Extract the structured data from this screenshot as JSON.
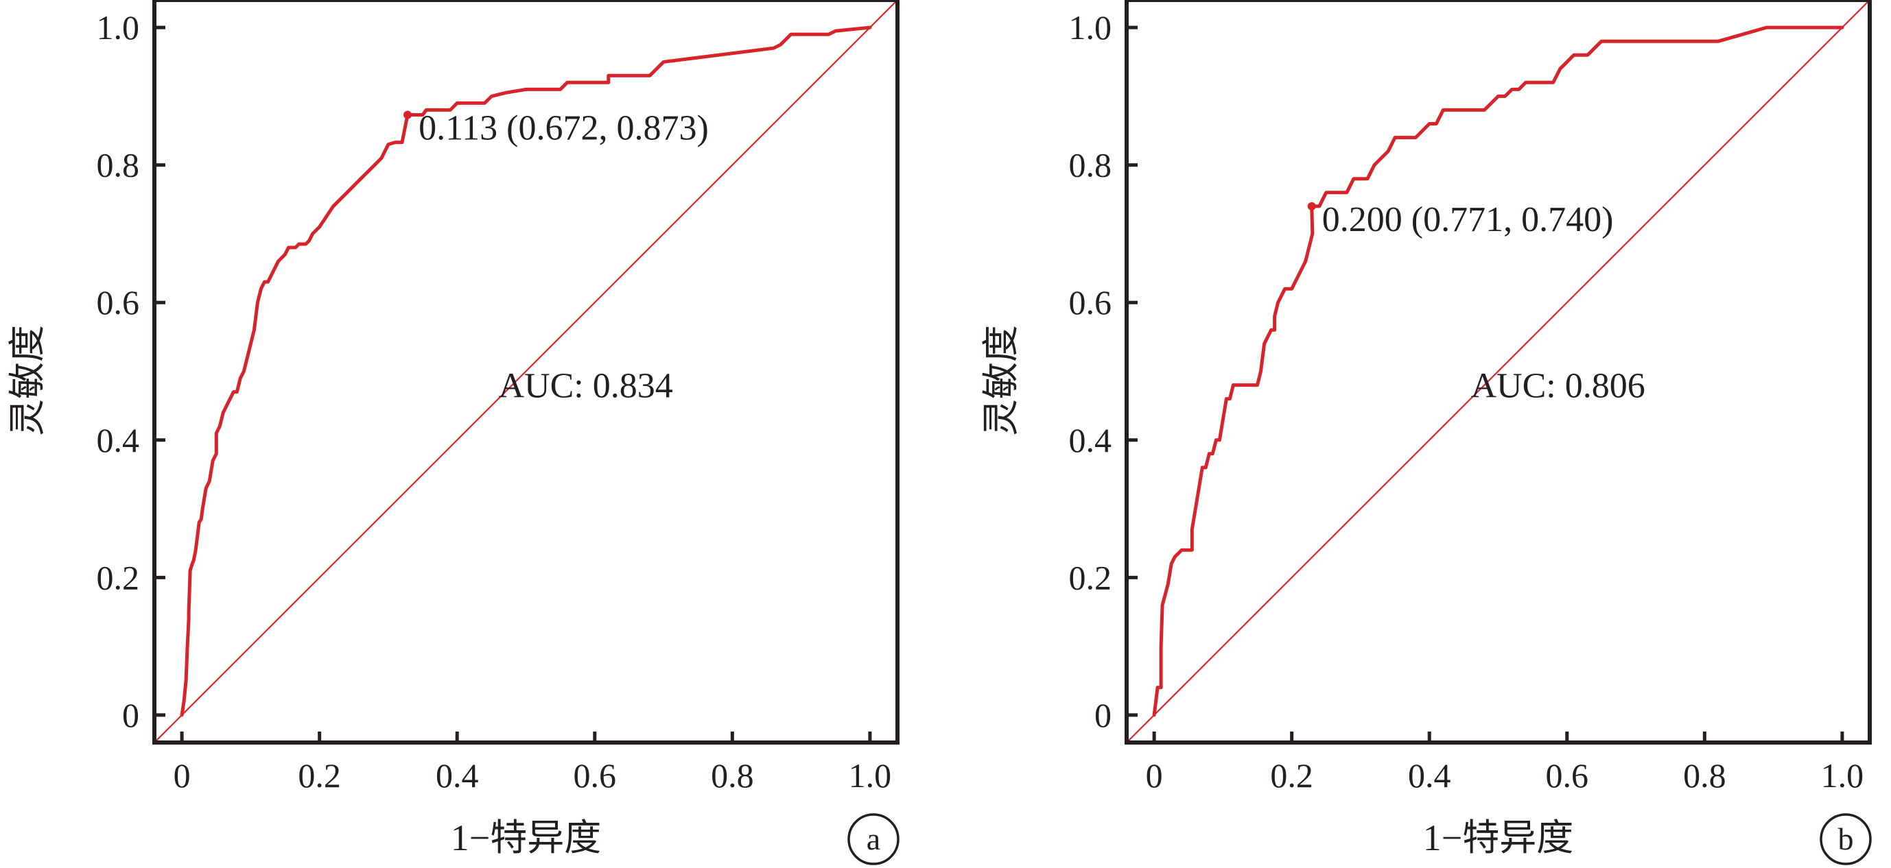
{
  "chart_data": [
    {
      "type": "line",
      "panel_label": "a",
      "xlabel": "1−特异度",
      "ylabel": "灵敏度",
      "xlim": [
        -0.04,
        1.04
      ],
      "ylim": [
        -0.04,
        1.04
      ],
      "xticks": [
        0,
        0.2,
        0.4,
        0.6,
        0.8,
        1.0
      ],
      "xtick_labels": [
        "0",
        "0.2",
        "0.4",
        "0.6",
        "0.8",
        "1.0"
      ],
      "yticks": [
        0,
        0.2,
        0.4,
        0.6,
        0.8,
        1.0
      ],
      "ytick_labels": [
        "0",
        "0.2",
        "0.4",
        "0.6",
        "0.8",
        "1.0"
      ],
      "grid": false,
      "auc_text": "AUC: 0.834",
      "cutoff_text": "0.113 (0.672, 0.873)",
      "cutoff_point": {
        "x": 0.328,
        "y": 0.873
      },
      "diagonal": [
        [
          -0.04,
          -0.04
        ],
        [
          1.04,
          1.04
        ]
      ],
      "roc": {
        "x": [
          0,
          0.003,
          0.006,
          0.008,
          0.01,
          0.01,
          0.012,
          0.015,
          0.017,
          0.02,
          0.025,
          0.028,
          0.03,
          0.035,
          0.04,
          0.045,
          0.05,
          0.05,
          0.055,
          0.06,
          0.065,
          0.07,
          0.075,
          0.08,
          0.085,
          0.09,
          0.1,
          0.105,
          0.11,
          0.115,
          0.12,
          0.125,
          0.13,
          0.14,
          0.15,
          0.155,
          0.165,
          0.17,
          0.18,
          0.185,
          0.19,
          0.2,
          0.22,
          0.24,
          0.26,
          0.28,
          0.29,
          0.3,
          0.31,
          0.32,
          0.328,
          0.33,
          0.34,
          0.35,
          0.355,
          0.37,
          0.39,
          0.4,
          0.44,
          0.45,
          0.47,
          0.5,
          0.55,
          0.56,
          0.61,
          0.62,
          0.62,
          0.68,
          0.69,
          0.7,
          0.86,
          0.87,
          0.88,
          0.885,
          0.9,
          0.94,
          0.95,
          1.0
        ],
        "y": [
          0,
          0.02,
          0.05,
          0.1,
          0.14,
          0.15,
          0.21,
          0.22,
          0.225,
          0.24,
          0.28,
          0.285,
          0.3,
          0.33,
          0.34,
          0.37,
          0.38,
          0.41,
          0.42,
          0.44,
          0.45,
          0.46,
          0.47,
          0.47,
          0.49,
          0.5,
          0.54,
          0.56,
          0.6,
          0.62,
          0.63,
          0.63,
          0.64,
          0.66,
          0.67,
          0.68,
          0.68,
          0.685,
          0.685,
          0.69,
          0.7,
          0.71,
          0.74,
          0.76,
          0.78,
          0.8,
          0.81,
          0.83,
          0.833,
          0.833,
          0.873,
          0.873,
          0.873,
          0.873,
          0.88,
          0.88,
          0.88,
          0.89,
          0.89,
          0.9,
          0.905,
          0.91,
          0.91,
          0.92,
          0.92,
          0.92,
          0.93,
          0.93,
          0.94,
          0.95,
          0.97,
          0.975,
          0.985,
          0.99,
          0.99,
          0.99,
          0.995,
          1.0
        ]
      }
    },
    {
      "type": "line",
      "panel_label": "b",
      "xlabel": "1−特异度",
      "ylabel": "灵敏度",
      "xlim": [
        -0.04,
        1.04
      ],
      "ylim": [
        -0.04,
        1.04
      ],
      "xticks": [
        0,
        0.2,
        0.4,
        0.6,
        0.8,
        1.0
      ],
      "xtick_labels": [
        "0",
        "0.2",
        "0.4",
        "0.6",
        "0.8",
        "1.0"
      ],
      "yticks": [
        0,
        0.2,
        0.4,
        0.6,
        0.8,
        1.0
      ],
      "ytick_labels": [
        "0",
        "0.2",
        "0.4",
        "0.6",
        "0.8",
        "1.0"
      ],
      "grid": false,
      "auc_text": "AUC: 0.806",
      "cutoff_text": "0.200 (0.771, 0.740)",
      "cutoff_point": {
        "x": 0.229,
        "y": 0.74
      },
      "diagonal": [
        [
          -0.04,
          -0.04
        ],
        [
          1.04,
          1.04
        ]
      ],
      "roc": {
        "x": [
          0,
          0.005,
          0.01,
          0.01,
          0.012,
          0.02,
          0.025,
          0.03,
          0.04,
          0.05,
          0.055,
          0.055,
          0.06,
          0.065,
          0.07,
          0.075,
          0.08,
          0.085,
          0.09,
          0.095,
          0.1,
          0.105,
          0.11,
          0.115,
          0.12,
          0.13,
          0.14,
          0.15,
          0.155,
          0.16,
          0.165,
          0.17,
          0.175,
          0.175,
          0.18,
          0.19,
          0.2,
          0.205,
          0.21,
          0.215,
          0.22,
          0.23,
          0.229,
          0.24,
          0.25,
          0.28,
          0.29,
          0.3,
          0.31,
          0.32,
          0.33,
          0.34,
          0.35,
          0.36,
          0.37,
          0.38,
          0.4,
          0.41,
          0.42,
          0.43,
          0.44,
          0.45,
          0.48,
          0.5,
          0.51,
          0.52,
          0.53,
          0.54,
          0.58,
          0.59,
          0.6,
          0.61,
          0.62,
          0.63,
          0.65,
          0.82,
          0.89,
          1.0
        ],
        "y": [
          0,
          0.04,
          0.04,
          0.1,
          0.16,
          0.19,
          0.22,
          0.23,
          0.24,
          0.24,
          0.24,
          0.27,
          0.3,
          0.33,
          0.36,
          0.36,
          0.38,
          0.38,
          0.4,
          0.4,
          0.43,
          0.46,
          0.46,
          0.48,
          0.48,
          0.48,
          0.48,
          0.48,
          0.5,
          0.54,
          0.55,
          0.56,
          0.56,
          0.58,
          0.6,
          0.62,
          0.62,
          0.63,
          0.64,
          0.65,
          0.66,
          0.7,
          0.74,
          0.74,
          0.76,
          0.76,
          0.78,
          0.78,
          0.78,
          0.8,
          0.81,
          0.82,
          0.84,
          0.84,
          0.84,
          0.84,
          0.86,
          0.86,
          0.88,
          0.88,
          0.88,
          0.88,
          0.88,
          0.9,
          0.9,
          0.91,
          0.91,
          0.92,
          0.92,
          0.94,
          0.95,
          0.96,
          0.96,
          0.96,
          0.98,
          0.98,
          1.0,
          1.0
        ]
      }
    }
  ]
}
